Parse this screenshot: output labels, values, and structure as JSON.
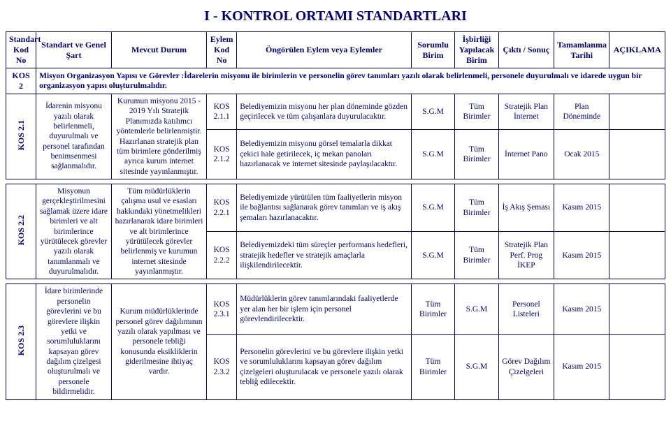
{
  "title": "I - KONTROL ORTAMI STANDARTLARI",
  "headers": {
    "h1": "Standart Kod No",
    "h2": "Standart ve Genel Şart",
    "h3": "Mevcut Durum",
    "h4": "Eylem Kod No",
    "h5": "Öngörülen Eylem veya Eylemler",
    "h6": "Sorumlu Birim",
    "h7": "İşbirliği Yapılacak Birim",
    "h8": "Çıktı / Sonuç",
    "h9": "Tamamlanma Tarihi",
    "h10": "AÇIKLAMA"
  },
  "kos2": {
    "code": "KOS 2",
    "text": "Misyon Organizasyon Yapısı ve Görevler :İdarelerin misyonu ile birimlerin ve personelin görev tanımları yazılı olarak belirlenmeli, personele duyurulmalı ve idarede uygun bir organizasyon yapısı oluşturulmalıdır."
  },
  "kos21": {
    "code": "KOS 2.1",
    "standart": "İdarenin misyonu yazılı olarak belirlenmeli, duyurulmalı ve personel tarafından benimsenmesi sağlanmalıdır.",
    "mevcut": "Kurumun misyonu 2015 - 2019 Yılı Stratejik Planımızda katılımcı yöntemlerle belirlenmiştir. Hazırlanan stratejik plan tüm birimlere gönderilmiş ayrıca kurum internet sitesinde yayınlanmıştır.",
    "r1": {
      "ek": "KOS 2.1.1",
      "eylem": "Belediyemizin misyonu her plan döneminde gözden geçirilecek ve tüm çalışanlara duyurulacaktır.",
      "sorumlu": "S.G.M",
      "isbirligi": "Tüm Birimler",
      "cikti": "Stratejik Plan İnternet",
      "tarih": "Plan Döneminde"
    },
    "r2": {
      "ek": "KOS 2.1.2",
      "eylem": "Belediyemizin misyonu görsel temalarla dikkat çekici hale getirilecek, iç mekan panoları hazırlanacak ve internet sitesinde paylaşılacaktır.",
      "sorumlu": "S.G.M",
      "isbirligi": "Tüm Birimler",
      "cikti": "İnternet Pano",
      "tarih": "Ocak 2015"
    }
  },
  "kos22": {
    "code": "KOS 2.2",
    "standart": "Misyonun gerçekleştirilmesini sağlamak üzere idare birimleri ve alt birimlerince yürütülecek görevler yazılı olarak tanımlanmalı ve duyurulmalıdır.",
    "mevcut": "Tüm müdürlüklerin çalışma usul ve esasları hakkındaki yönetmelikleri hazırlanarak idare birimleri ve alt birimlerince yürütülecek görevler belirlenmiş ve kurumun internet sitesinde yayınlanmıştır.",
    "r1": {
      "ek": "KOS 2.2.1",
      "eylem": "Belediyemizde yürütülen tüm faaliyetlerin misyon ile bağlantısı sağlanarak görev tanımları ve iş akış şemaları hazırlanacaktır.",
      "sorumlu": "S.G.M",
      "isbirligi": "Tüm Birimler",
      "cikti": "İş Akış Şeması",
      "tarih": "Kasım 2015"
    },
    "r2": {
      "ek": "KOS 2.2.2",
      "eylem": "Belediyemizdeki tüm süreçler  performans hedefleri, stratejik hedefler ve stratejik amaçlarla ilişkilendirilecektir.",
      "sorumlu": "S.G.M",
      "isbirligi": "Tüm Birimler",
      "cikti": "Stratejik Plan Perf. Prog İKEP",
      "tarih": "Kasım 2015"
    }
  },
  "kos23": {
    "code": "KOS 2.3",
    "standart": "İdare birimlerinde personelin görevlerini ve bu görevlere ilişkin yetki ve sorumluluklarını kapsayan görev dağılım çizelgesi oluşturulmalı ve personele bildirmelidir.",
    "mevcut": "Kurum müdürlüklerinde personel görev dağılımının yazılı olarak yapılması ve personele tebliği konusunda eksikliklerin giderilmesine ihtiyaç vardır.",
    "r1": {
      "ek": "KOS 2.3.1",
      "eylem": "Müdürlüklerin görev tanımlarındaki faaliyetlerde yer alan her bir işlem için personel görevlendirilecektir.",
      "sorumlu": "Tüm Birimler",
      "isbirligi": "S.G.M",
      "cikti": "Personel Listeleri",
      "tarih": "Kasım 2015"
    },
    "r2": {
      "ek": "KOS 2.3.2",
      "eylem": "Personelin görevlerini ve bu görevlere ilişkin yetki ve sorumluluklarını kapsayan görev dağılım çizelgeleri oluşturulacak ve personele yazılı olarak tebliğ edilecektir.",
      "sorumlu": "Tüm Birimler",
      "isbirligi": "S.G.M",
      "cikti": "Görev Dağılım Çizelgeleri",
      "tarih": "Kasım 2015"
    }
  }
}
